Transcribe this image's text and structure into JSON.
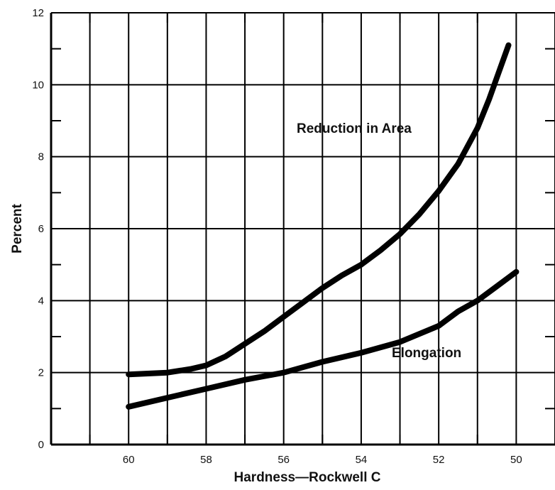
{
  "chart_data": {
    "type": "line",
    "title": "",
    "xlabel": "Hardness—Rockwell C",
    "ylabel": "Percent",
    "xlim": [
      62,
      49
    ],
    "ylim": [
      0,
      12
    ],
    "x_reversed": true,
    "grid": true,
    "x_ticks": [
      60,
      58,
      56,
      54,
      52,
      50
    ],
    "y_ticks": [
      0,
      2,
      4,
      6,
      8,
      10,
      12
    ],
    "series": [
      {
        "name": "Reduction in Area",
        "x": [
          60,
          59,
          58.4,
          58,
          57.5,
          57,
          56.5,
          56,
          55.5,
          55,
          54.5,
          54,
          53.5,
          53,
          52.5,
          52,
          51.5,
          51,
          50.7,
          50.5,
          50.2
        ],
        "y": [
          1.95,
          2.0,
          2.1,
          2.2,
          2.45,
          2.8,
          3.15,
          3.55,
          3.95,
          4.35,
          4.7,
          5.0,
          5.4,
          5.85,
          6.4,
          7.05,
          7.8,
          8.8,
          9.6,
          10.2,
          11.1
        ]
      },
      {
        "name": "Elongation",
        "x": [
          60,
          59,
          58,
          57,
          56,
          55,
          54,
          53,
          52,
          51.5,
          51,
          50.5,
          50
        ],
        "y": [
          1.05,
          1.3,
          1.55,
          1.8,
          2.0,
          2.3,
          2.55,
          2.85,
          3.3,
          3.7,
          4.0,
          4.4,
          4.8
        ]
      }
    ]
  }
}
